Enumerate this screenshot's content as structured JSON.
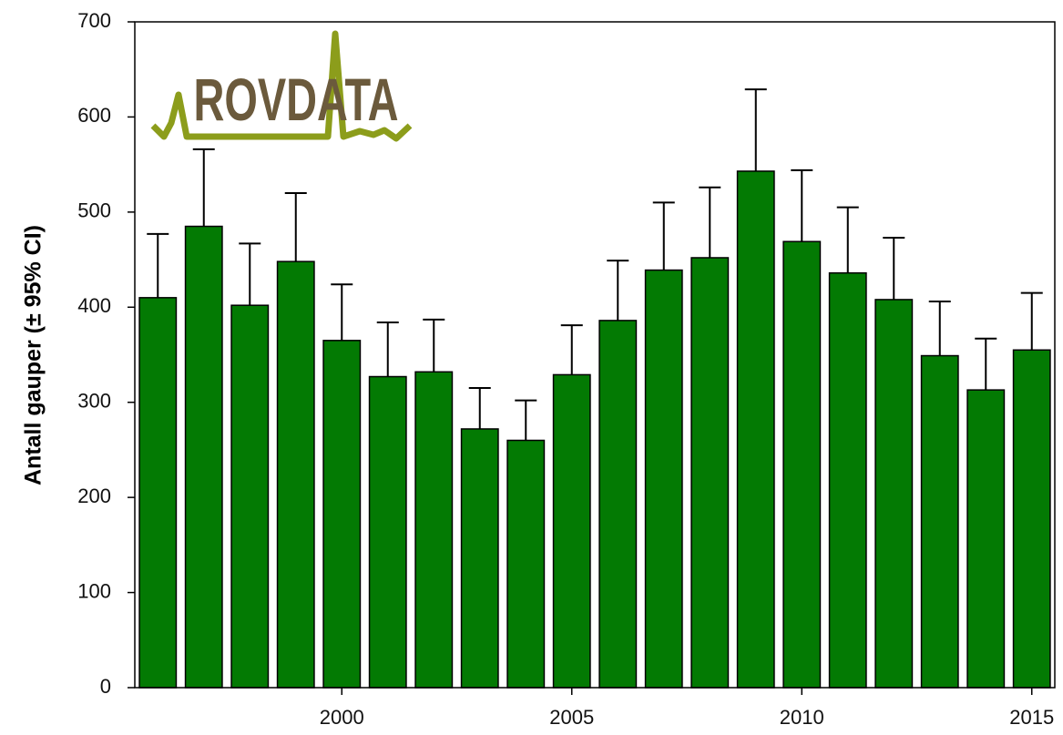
{
  "chart_data": {
    "type": "bar",
    "ylabel": "Antall gauper (± 95% CI)",
    "logo": "ROVDATA",
    "x": [
      1996,
      1997,
      1998,
      1999,
      2000,
      2001,
      2002,
      2003,
      2004,
      2005,
      2006,
      2007,
      2008,
      2009,
      2010,
      2011,
      2012,
      2013,
      2014,
      2015
    ],
    "values": [
      410,
      485,
      402,
      448,
      365,
      327,
      332,
      272,
      260,
      329,
      386,
      439,
      452,
      543,
      469,
      436,
      408,
      349,
      313,
      355
    ],
    "errors": [
      67,
      81,
      65,
      72,
      59,
      57,
      55,
      43,
      42,
      52,
      63,
      71,
      74,
      86,
      75,
      69,
      65,
      57,
      54,
      60
    ],
    "color": "#037a03",
    "xlim": [
      1995.5,
      2015.5
    ],
    "xticks": [
      2000,
      2005,
      2010,
      2015
    ],
    "ylim": [
      0,
      700
    ],
    "yticks": [
      0,
      100,
      200,
      300,
      400,
      500,
      600,
      700
    ]
  }
}
